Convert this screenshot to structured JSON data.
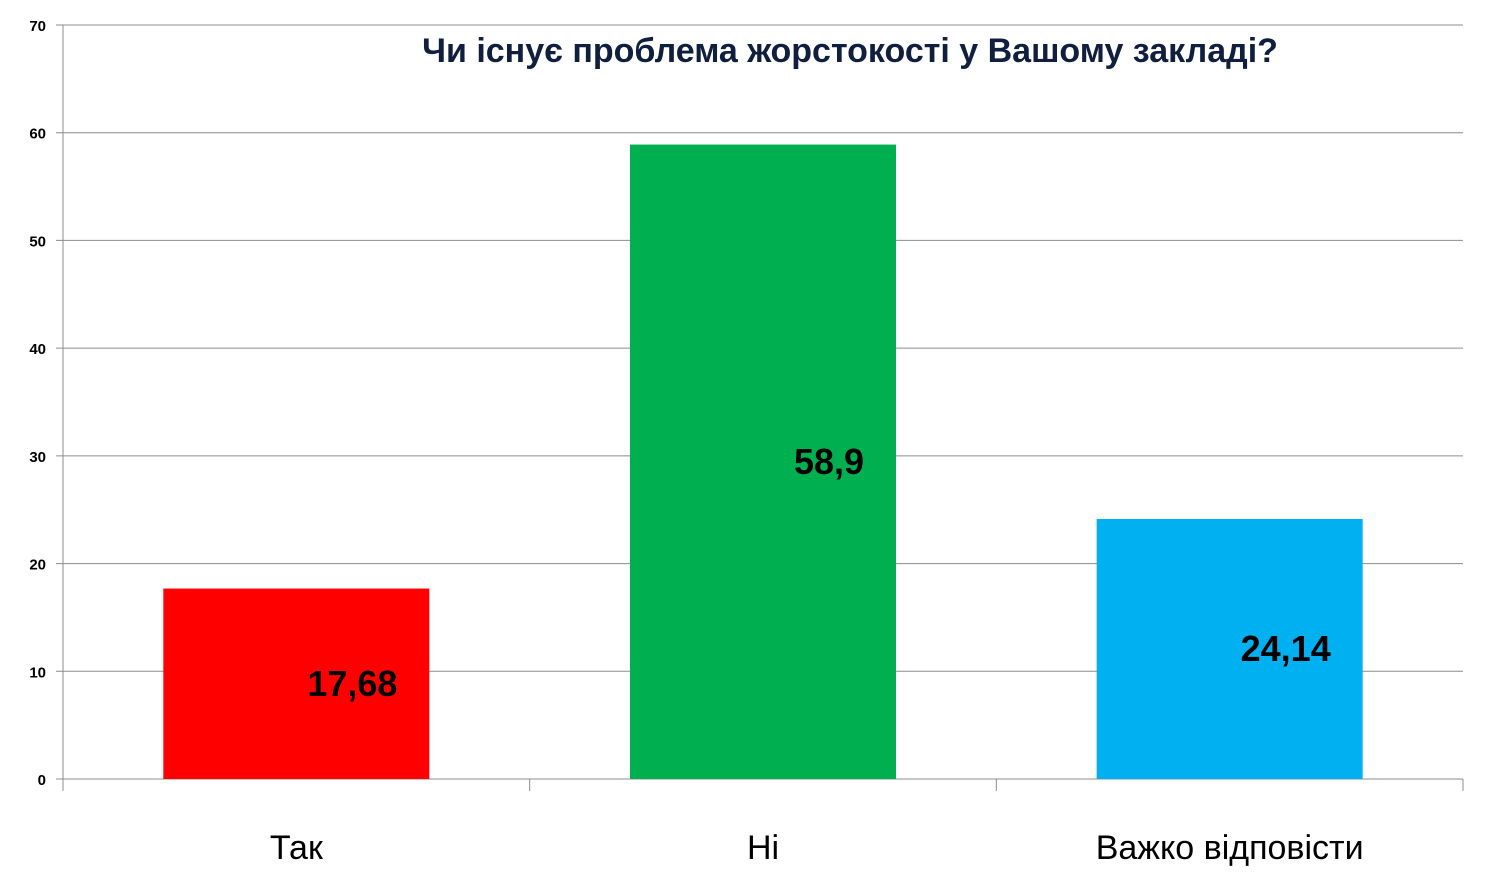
{
  "chart_data": {
    "type": "bar",
    "title": "Чи існує проблема жорстокості у Вашому закладі?",
    "categories": [
      "Так",
      "Ні",
      "Важко відповісти"
    ],
    "values": [
      17.68,
      58.9,
      24.14
    ],
    "data_labels": [
      "17,68",
      "58,9",
      "24,14"
    ],
    "colors": [
      "#ff0000",
      "#00b050",
      "#00b0f0"
    ],
    "xlabel": "",
    "ylabel": "",
    "ylim": [
      0,
      70
    ],
    "yticks": [
      0,
      10,
      20,
      30,
      40,
      50,
      60,
      70
    ],
    "grid": true,
    "legend": "none"
  }
}
